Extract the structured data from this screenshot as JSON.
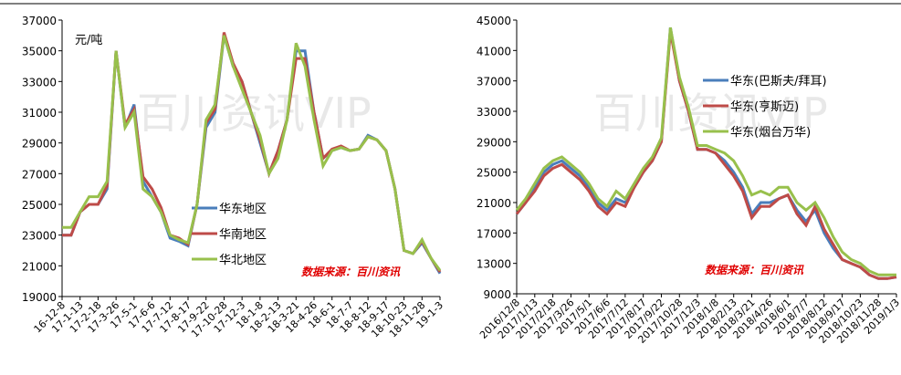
{
  "chart_data": [
    {
      "type": "line",
      "annotation": "元/吨",
      "source": "数据来源：百川资讯",
      "categories": [
        "16-12-8",
        null,
        "17-1-13",
        null,
        "17-2-18",
        null,
        "17-3-26",
        null,
        "17-5-1",
        null,
        "17-6-6",
        null,
        "17-7-12",
        null,
        "17-8-17",
        null,
        "17-9-22",
        null,
        "17-10-28",
        null,
        "17-12-3",
        null,
        "18-1-8",
        null,
        "18-2-13",
        null,
        "18-3-21",
        null,
        "18-4-26",
        null,
        "18-6-1",
        null,
        "18-7-7",
        null,
        "18-8-12",
        null,
        "18-9-17",
        null,
        "18-10-23",
        null,
        "18-11-28",
        null,
        "19-1-3"
      ],
      "series": [
        {
          "name": "华东地区",
          "color": "#4a7ebb",
          "values": [
            23000,
            23000,
            24500,
            25000,
            25000,
            26000,
            35000,
            30000,
            31500,
            26500,
            25500,
            24500,
            22800,
            22600,
            22300,
            25000,
            30000,
            31000,
            36000,
            34000,
            33000,
            31000,
            29000,
            27000,
            28500,
            30500,
            35000,
            35000,
            31000,
            28000,
            28500,
            28700,
            28500,
            28600,
            29500,
            29200,
            28500,
            26000,
            22000,
            21800,
            22500,
            21500,
            20500
          ]
        },
        {
          "name": "华南地区",
          "color": "#be4b48",
          "values": [
            23000,
            23000,
            24500,
            25000,
            25000,
            26200,
            35000,
            30200,
            31200,
            26800,
            26000,
            24800,
            23000,
            22800,
            22400,
            25000,
            30300,
            31200,
            36200,
            34200,
            33000,
            31000,
            29200,
            27000,
            28500,
            30500,
            34500,
            34500,
            31000,
            28000,
            28600,
            28800,
            28500,
            28600,
            29400,
            29200,
            28500,
            26000,
            22000,
            21800,
            22600,
            21500,
            20600
          ]
        },
        {
          "name": "华北地区",
          "color": "#98c04c",
          "values": [
            23500,
            23500,
            24500,
            25500,
            25500,
            26500,
            35000,
            30000,
            31000,
            26000,
            25500,
            24500,
            23000,
            22700,
            22500,
            25000,
            30500,
            31500,
            36000,
            34000,
            32500,
            31000,
            29500,
            27000,
            28000,
            30500,
            35500,
            34000,
            30500,
            27500,
            28500,
            28700,
            28500,
            28600,
            29400,
            29200,
            28500,
            26000,
            22000,
            21800,
            22700,
            21500,
            20700
          ]
        }
      ],
      "ylim": [
        19000,
        37000
      ],
      "yticks": [
        19000,
        21000,
        23000,
        25000,
        27000,
        29000,
        31000,
        33000,
        35000,
        37000
      ],
      "legend": "lower-center"
    },
    {
      "type": "line",
      "source": "数据来源：百川资讯",
      "categories": [
        "2016/12/8",
        null,
        "2017/1/13",
        null,
        "2017/2/18",
        null,
        "2017/3/26",
        null,
        "2017/5/1",
        null,
        "2017/6/6",
        null,
        "2017/7/12",
        null,
        "2017/8/17",
        null,
        "2017/9/22",
        null,
        "2017/10/28",
        null,
        "2017/12/3",
        null,
        "2018/1/8",
        null,
        "2018/2/13",
        null,
        "2018/3/21",
        null,
        "2018/4/26",
        null,
        "2018/6/1",
        null,
        "2018/7/7",
        null,
        "2018/8/12",
        null,
        "2018/9/17",
        null,
        "2018/10/23",
        null,
        "2018/11/28",
        null,
        "2019/1/3"
      ],
      "series": [
        {
          "name": "华东(巴斯夫/拜耳)",
          "color": "#4a7ebb",
          "values": [
            19500,
            21000,
            23000,
            25000,
            26000,
            26500,
            25500,
            24500,
            23000,
            21000,
            20000,
            21500,
            21000,
            23000,
            25000,
            26500,
            29000,
            44000,
            37000,
            33000,
            28000,
            28000,
            27500,
            26500,
            25000,
            23000,
            19500,
            21000,
            21000,
            21500,
            22000,
            20000,
            18500,
            20000,
            17000,
            15000,
            13500,
            13000,
            12500,
            11500,
            11000,
            11000,
            11200
          ]
        },
        {
          "name": "华东(亨斯迈)",
          "color": "#be4b48",
          "values": [
            19500,
            21000,
            22500,
            24500,
            25500,
            26000,
            25000,
            24000,
            22500,
            20500,
            19500,
            21000,
            20500,
            23000,
            25000,
            26500,
            29000,
            43500,
            37000,
            33000,
            28000,
            28000,
            27500,
            26000,
            24500,
            22500,
            19000,
            20500,
            20500,
            21500,
            22000,
            19500,
            18000,
            20500,
            17500,
            15500,
            13500,
            13000,
            12500,
            11500,
            11000,
            11000,
            11200
          ]
        },
        {
          "name": "华东(烟台万华)",
          "color": "#98c04c",
          "values": [
            20000,
            21500,
            23500,
            25500,
            26500,
            27000,
            26000,
            25000,
            23500,
            21500,
            20500,
            22500,
            21500,
            23500,
            25500,
            27000,
            29500,
            44000,
            37500,
            33500,
            28500,
            28500,
            28000,
            27500,
            26500,
            24500,
            22000,
            22500,
            22000,
            23000,
            23000,
            21000,
            20000,
            21000,
            19000,
            16500,
            14500,
            13500,
            13000,
            12000,
            11500,
            11500,
            11500
          ]
        }
      ],
      "ylim": [
        9000,
        45000
      ],
      "yticks": [
        9000,
        13000,
        17000,
        21000,
        25000,
        29000,
        33000,
        37000,
        41000,
        45000
      ],
      "legend": "upper-right"
    }
  ]
}
